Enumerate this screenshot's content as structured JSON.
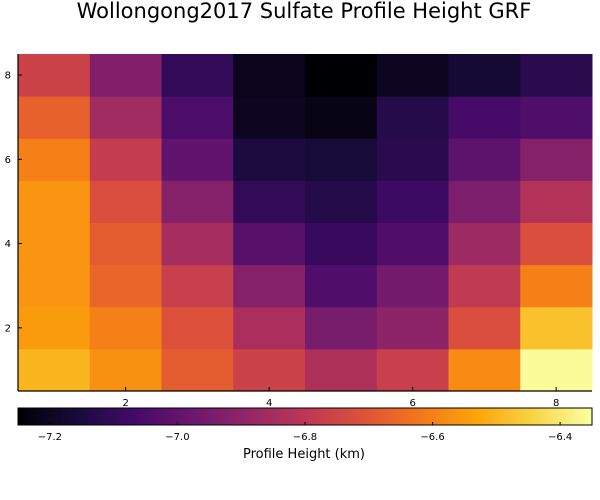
{
  "chart_data": {
    "type": "heatmap",
    "title": "Wollongong2017 Sulfate Profile Height GRF",
    "xlabel": "",
    "ylabel": "",
    "colorbar_label": "Profile Height (km)",
    "colorbar_orientation": "horizontal",
    "colormap": "inferno",
    "x_centers": [
      1,
      2,
      3,
      4,
      5,
      6,
      7,
      8
    ],
    "y_centers": [
      1,
      2,
      3,
      4,
      5,
      6,
      7,
      8
    ],
    "xlim": [
      0.5,
      8.5
    ],
    "ylim": [
      0.5,
      8.5
    ],
    "x_ticks": [
      2,
      4,
      6,
      8
    ],
    "y_ticks": [
      2,
      4,
      6,
      8
    ],
    "clim": [
      -7.25,
      -6.35
    ],
    "colorbar_ticks": [
      -7.2,
      -7.0,
      -6.8,
      -6.6,
      -6.4
    ],
    "colorbar_tick_labels": [
      "−7.2",
      "−7.0",
      "−6.8",
      "−6.6",
      "−6.4"
    ],
    "grid": false,
    "z": [
      [
        -6.5,
        -6.57,
        -6.68,
        -6.76,
        -6.83,
        -6.77,
        -6.58,
        -6.36
      ],
      [
        -6.55,
        -6.6,
        -6.71,
        -6.84,
        -6.95,
        -6.9,
        -6.72,
        -6.48
      ],
      [
        -6.56,
        -6.66,
        -6.77,
        -6.92,
        -7.04,
        -6.96,
        -6.79,
        -6.6
      ],
      [
        -6.56,
        -6.68,
        -6.85,
        -7.02,
        -7.09,
        -7.04,
        -6.87,
        -6.72
      ],
      [
        -6.56,
        -6.72,
        -6.92,
        -7.1,
        -7.13,
        -7.08,
        -6.94,
        -6.82
      ],
      [
        -6.6,
        -6.78,
        -7.0,
        -7.15,
        -7.16,
        -7.12,
        -7.01,
        -6.92
      ],
      [
        -6.67,
        -6.86,
        -7.05,
        -7.2,
        -7.22,
        -7.13,
        -7.06,
        -7.04
      ],
      [
        -6.76,
        -6.93,
        -7.1,
        -7.21,
        -7.25,
        -7.2,
        -7.17,
        -7.12
      ]
    ]
  }
}
